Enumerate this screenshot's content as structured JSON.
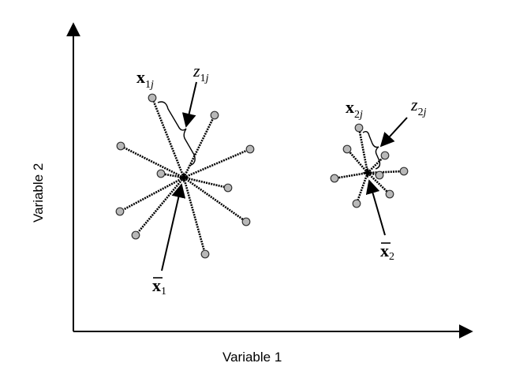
{
  "axes": {
    "x_label": "Variable 1",
    "y_label": "Variable 2"
  },
  "cluster1": {
    "point_label": "x",
    "point_sub_index": "1",
    "point_sub_j": "j",
    "dist_label": "z",
    "dist_sub_index": "1",
    "dist_sub_j": "j",
    "centroid_label": "x",
    "centroid_sub": "1"
  },
  "cluster2": {
    "point_label": "x",
    "point_sub_index": "2",
    "point_sub_j": "j",
    "dist_label": "z",
    "dist_sub_index": "2",
    "dist_sub_j": "j",
    "centroid_label": "x",
    "centroid_sub": "2"
  }
}
